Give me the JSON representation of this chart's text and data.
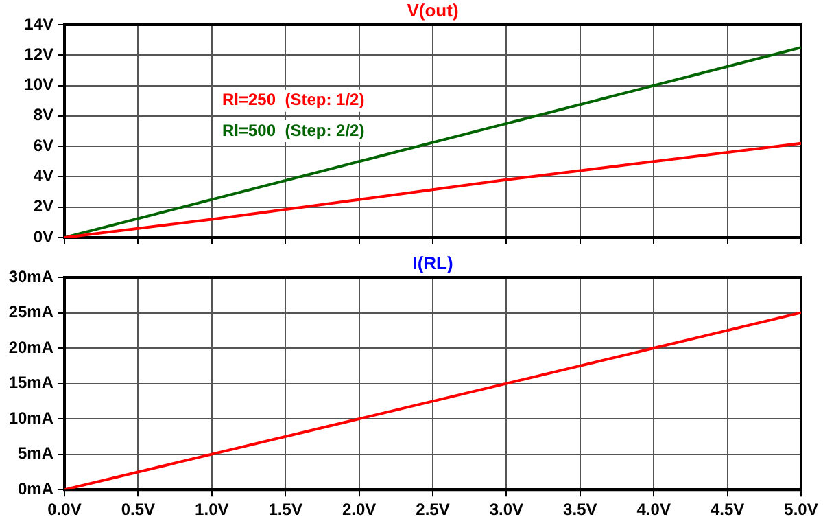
{
  "chart_data": [
    {
      "type": "line",
      "title": "V(out)",
      "x": [
        0,
        1,
        2,
        3,
        4,
        5
      ],
      "series": [
        {
          "name": "Rl=250  (Step: 1/2)",
          "color": "#ff0000",
          "values": [
            0,
            1.2,
            2.5,
            3.8,
            5,
            6.2
          ]
        },
        {
          "name": "Rl=500  (Step: 2/2)",
          "color": "#006400",
          "values": [
            0,
            2.5,
            5,
            7.5,
            10,
            12.5
          ]
        }
      ],
      "xlim": [
        0,
        5
      ],
      "xticks": [
        {
          "value": 0,
          "label": null
        },
        {
          "value": 0.5,
          "label": null
        },
        {
          "value": 1,
          "label": null
        },
        {
          "value": 1.5,
          "label": null
        },
        {
          "value": 2,
          "label": null
        },
        {
          "value": 2.5,
          "label": null
        },
        {
          "value": 3,
          "label": null
        },
        {
          "value": 3.5,
          "label": null
        },
        {
          "value": 4,
          "label": null
        },
        {
          "value": 4.5,
          "label": null
        },
        {
          "value": 5,
          "label": null
        }
      ],
      "ylim": [
        0,
        14
      ],
      "yticks": [
        {
          "value": 0,
          "label": "0V"
        },
        {
          "value": 2,
          "label": "2V"
        },
        {
          "value": 4,
          "label": "4V"
        },
        {
          "value": 6,
          "label": "6V"
        },
        {
          "value": 8,
          "label": "8V"
        },
        {
          "value": 10,
          "label": "10V"
        },
        {
          "value": 12,
          "label": "12V"
        },
        {
          "value": 14,
          "label": "14V"
        }
      ],
      "tick_labels": "y",
      "grid": true,
      "legend": "top left",
      "marker": "none",
      "line_style": "solid"
    },
    {
      "type": "line",
      "title": "I(RL)",
      "x": [
        0,
        1,
        2,
        3,
        4,
        5
      ],
      "series": [
        {
          "color": "#ff0000",
          "values": [
            0,
            5,
            10,
            15,
            20,
            25
          ]
        }
      ],
      "xlim": [
        0,
        5
      ],
      "xticks": [
        {
          "value": 0,
          "label": "0.0V"
        },
        {
          "value": 0.5,
          "label": "0.5V"
        },
        {
          "value": 1,
          "label": "1.0V"
        },
        {
          "value": 1.5,
          "label": "1.5V"
        },
        {
          "value": 2,
          "label": "2.0V"
        },
        {
          "value": 2.5,
          "label": "2.5V"
        },
        {
          "value": 3,
          "label": "3.0V"
        },
        {
          "value": 3.5,
          "label": "3.5V"
        },
        {
          "value": 4,
          "label": "4.0V"
        },
        {
          "value": 4.5,
          "label": "4.5V"
        },
        {
          "value": 5,
          "label": "5.0V"
        }
      ],
      "ylim": [
        0,
        30
      ],
      "yticks": [
        {
          "value": 0,
          "label": "0mA"
        },
        {
          "value": 5,
          "label": "5mA"
        },
        {
          "value": 10,
          "label": "10mA"
        },
        {
          "value": 15,
          "label": "15mA"
        },
        {
          "value": 20,
          "label": "20mA"
        },
        {
          "value": 25,
          "label": "25mA"
        },
        {
          "value": 30,
          "label": "30mA"
        }
      ],
      "grid": true,
      "legend": false,
      "marker": "none",
      "line_style": "solid"
    }
  ]
}
